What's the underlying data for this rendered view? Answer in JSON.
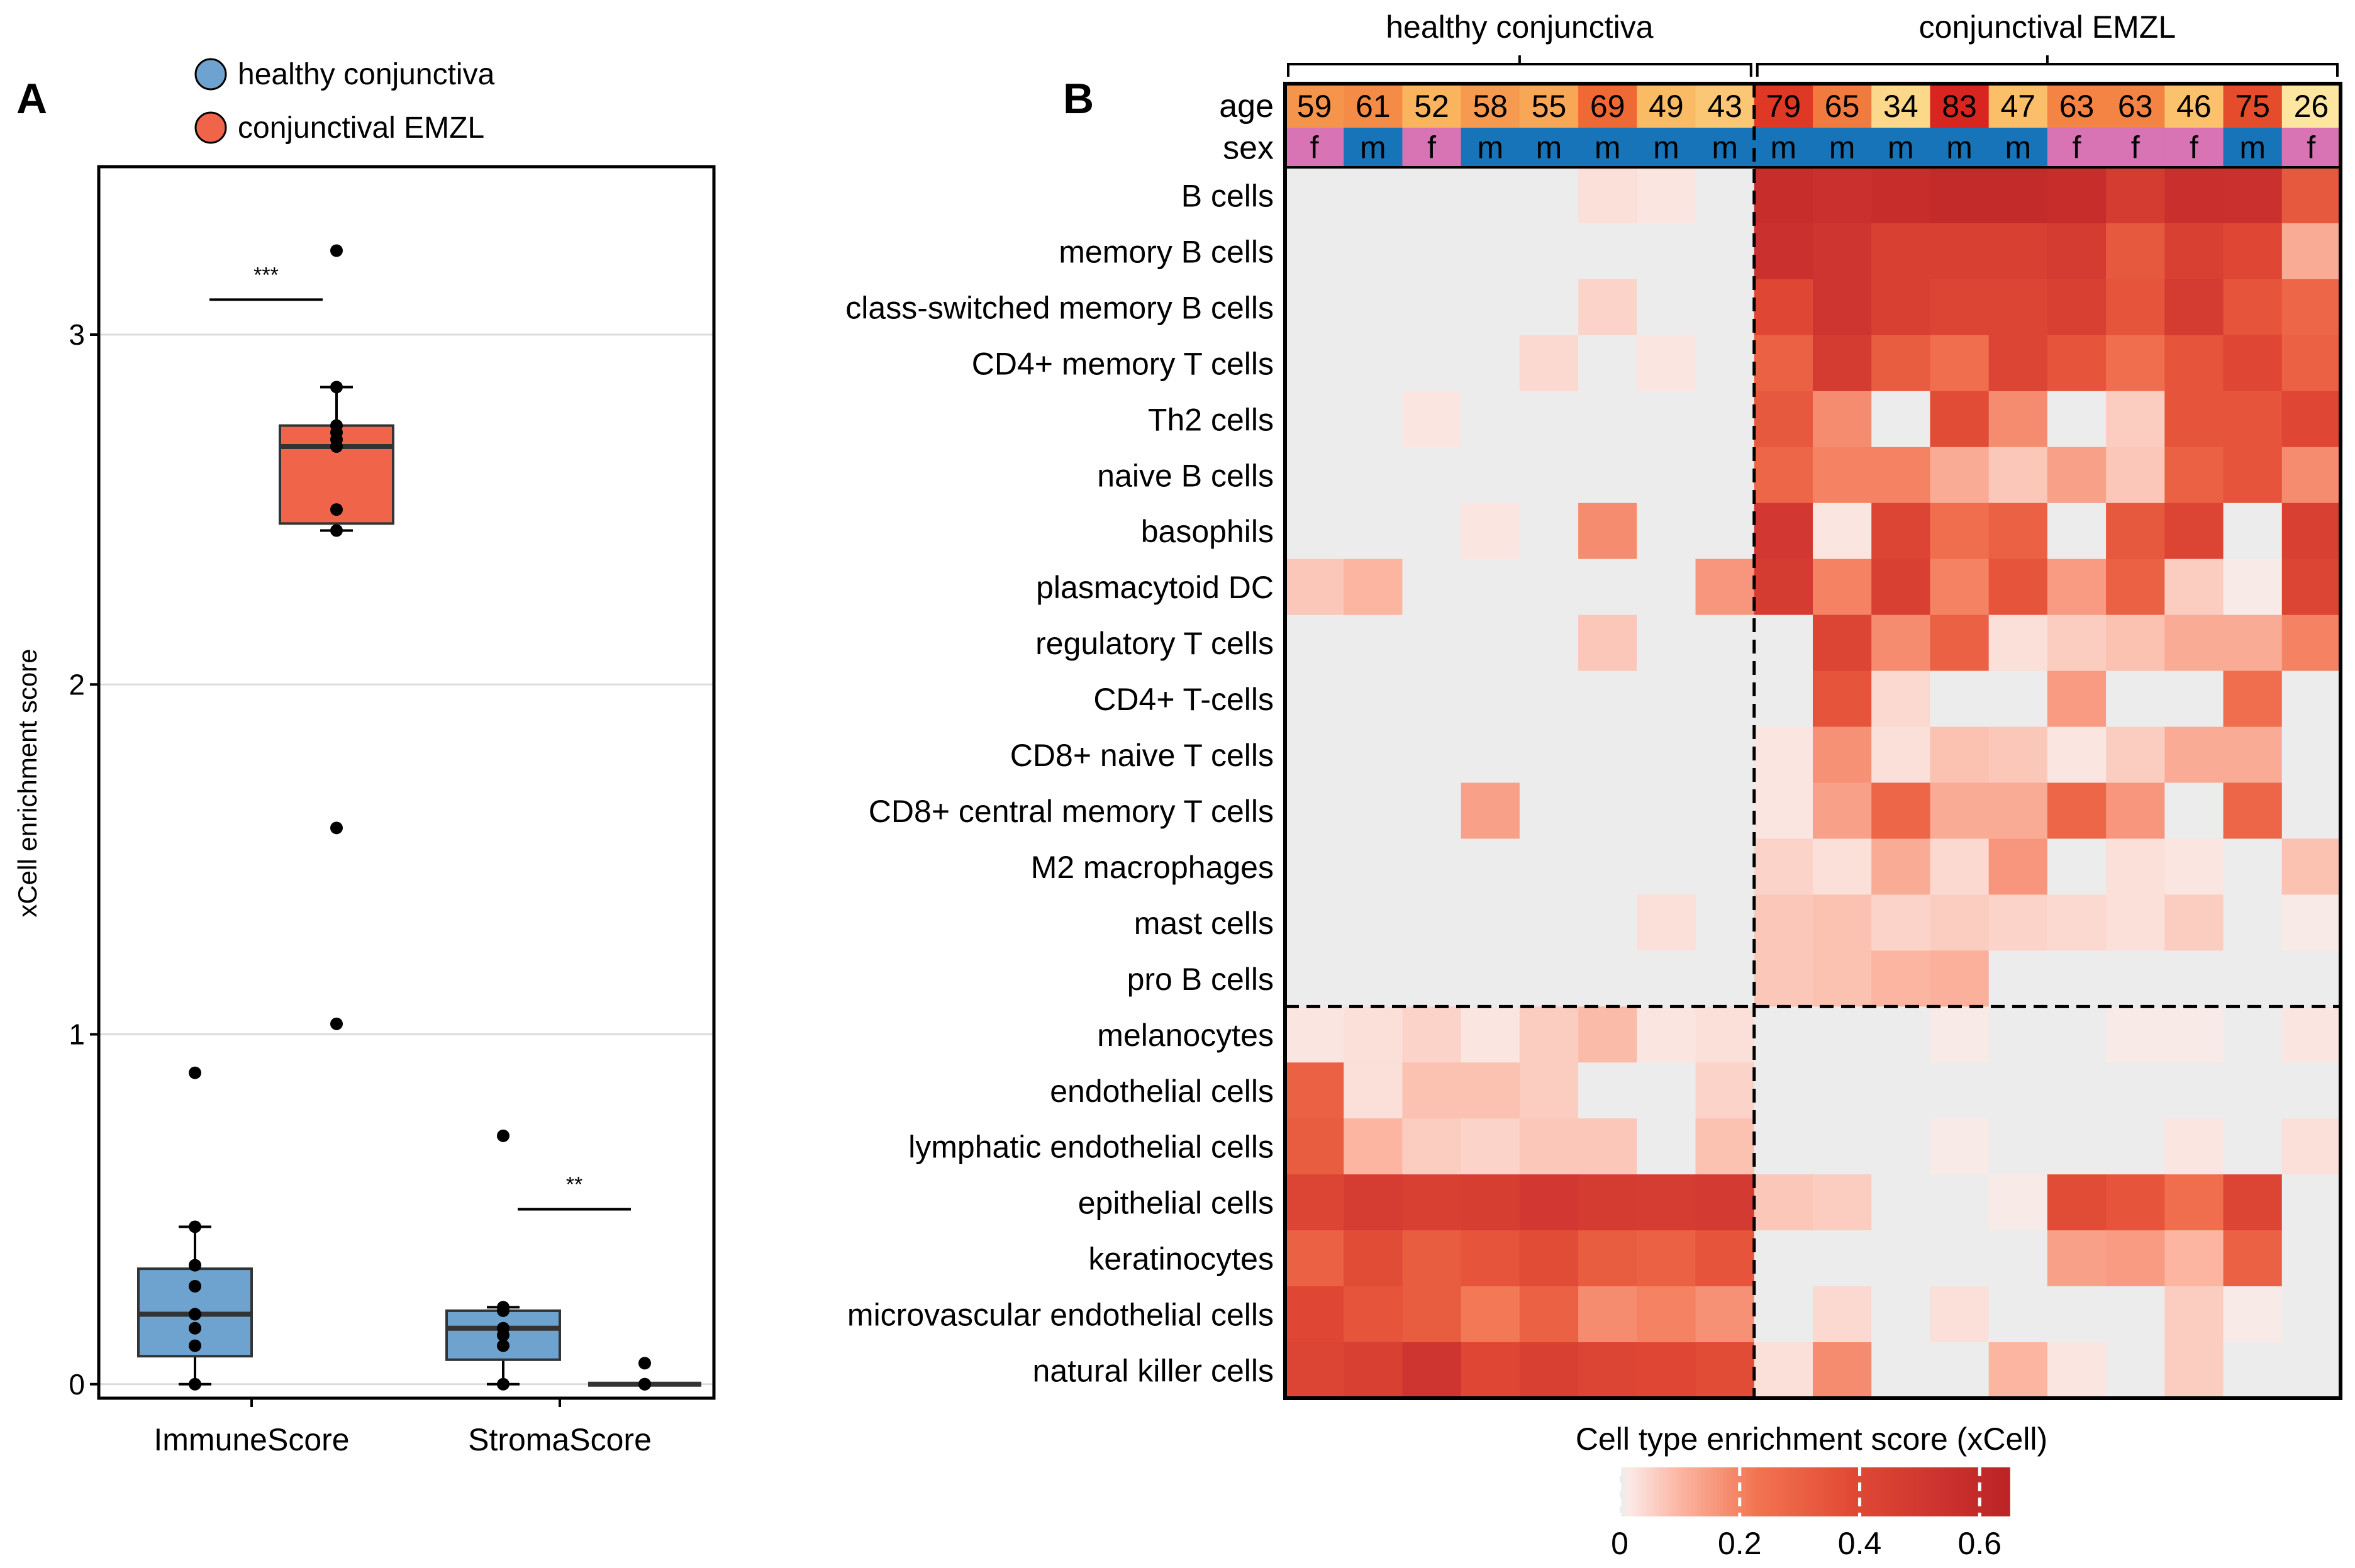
{
  "panel_a": {
    "label": "A",
    "legend": [
      {
        "name": "healthy conjunctiva",
        "color": "#6fa3cf"
      },
      {
        "name": "conjunctival EMZL",
        "color": "#f0654a"
      }
    ]
  },
  "panel_b": {
    "label": "B",
    "colorbar_title": "Cell type enrichment score (xCell)"
  },
  "chart_data": [
    {
      "type": "box",
      "title": "",
      "ylabel": "xCell enrichment score",
      "xlabel": "",
      "ylim": [
        -0.04,
        3.48
      ],
      "yticks": [
        0,
        1,
        2,
        3
      ],
      "categories": [
        "ImmuneScore",
        "StromaScore"
      ],
      "series": [
        {
          "name": "healthy conjunctiva",
          "color": "#6fa3cf",
          "boxes": [
            {
              "category": "ImmuneScore",
              "whisker_low": 0.0,
              "q1": 0.08,
              "median": 0.2,
              "q3": 0.33,
              "whisker_high": 0.45,
              "outliers": [
                0.89
              ],
              "points": [
                0.0,
                0.11,
                0.16,
                0.2,
                0.28,
                0.34,
                0.45,
                0.89
              ]
            },
            {
              "category": "StromaScore",
              "whisker_low": 0.0,
              "q1": 0.07,
              "median": 0.16,
              "q3": 0.21,
              "whisker_high": 0.22,
              "outliers": [
                0.71
              ],
              "points": [
                0.0,
                0.11,
                0.14,
                0.16,
                0.21,
                0.22,
                0.71
              ]
            }
          ]
        },
        {
          "name": "conjunctival EMZL",
          "color": "#f0654a",
          "boxes": [
            {
              "category": "ImmuneScore",
              "whisker_low": 2.44,
              "q1": 2.46,
              "median": 2.68,
              "q3": 2.74,
              "whisker_high": 2.85,
              "outliers": [
                3.24,
                1.59,
                1.03
              ],
              "points": [
                2.44,
                2.5,
                2.68,
                2.7,
                2.72,
                2.74,
                2.85,
                3.24,
                1.59,
                1.03
              ]
            },
            {
              "category": "StromaScore",
              "whisker_low": 0.0,
              "q1": 0.0,
              "median": 0.0,
              "q3": 0.0,
              "whisker_high": 0.0,
              "outliers": [
                0.06
              ],
              "points": [
                0.0,
                0.0,
                0.06
              ]
            }
          ]
        }
      ],
      "significance": [
        {
          "category": "ImmuneScore",
          "label": "***"
        },
        {
          "category": "StromaScore",
          "label": "**"
        }
      ]
    },
    {
      "type": "heatmap",
      "title": "",
      "groups": [
        {
          "name": "healthy conjunctiva",
          "n": 8
        },
        {
          "name": "conjunctival EMZL",
          "n": 10
        }
      ],
      "row_annotation_labels": [
        "age",
        "sex"
      ],
      "ages": [
        59,
        61,
        52,
        58,
        55,
        69,
        49,
        43,
        79,
        65,
        34,
        83,
        47,
        63,
        63,
        46,
        75,
        26
      ],
      "sexes": [
        "f",
        "m",
        "f",
        "m",
        "m",
        "m",
        "m",
        "m",
        "m",
        "m",
        "m",
        "m",
        "m",
        "f",
        "f",
        "f",
        "m",
        "f"
      ],
      "sex_colors": {
        "f": "#d873b4",
        "m": "#1874b8"
      },
      "age_range": [
        26,
        83
      ],
      "rows": [
        "B cells",
        "memory B cells",
        "class-switched memory B cells",
        "CD4+ memory T cells",
        "Th2 cells",
        "naive B cells",
        "basophils",
        "plasmacytoid DC",
        "regulatory T cells",
        "CD4+ T-cells",
        "CD8+ naive T cells",
        "CD8+ central memory T cells",
        "M2 macrophages",
        "mast cells",
        "pro B cells",
        "melanocytes",
        "endothelial cells",
        "lymphatic endothelial cells",
        "epithelial cells",
        "keratinocytes",
        "microvascular endothelial cells",
        "natural killer cells"
      ],
      "row_split_after": 15,
      "values": [
        [
          0,
          0,
          0,
          0,
          0,
          0.03,
          0.02,
          0,
          0.58,
          0.55,
          0.58,
          0.6,
          0.6,
          0.58,
          0.48,
          0.56,
          0.55,
          0.33
        ],
        [
          0,
          0,
          0,
          0,
          0,
          0,
          0,
          0,
          0.55,
          0.52,
          0.45,
          0.45,
          0.45,
          0.48,
          0.33,
          0.45,
          0.4,
          0.12
        ],
        [
          0,
          0,
          0,
          0,
          0,
          0.05,
          0,
          0,
          0.4,
          0.52,
          0.45,
          0.42,
          0.42,
          0.45,
          0.35,
          0.48,
          0.35,
          0.28
        ],
        [
          0,
          0,
          0,
          0,
          0.04,
          0,
          0.02,
          0,
          0.3,
          0.48,
          0.32,
          0.25,
          0.42,
          0.35,
          0.25,
          0.35,
          0.4,
          0.3
        ],
        [
          0,
          0,
          0.02,
          0,
          0,
          0,
          0,
          0,
          0.33,
          0.18,
          0,
          0.38,
          0.18,
          0,
          0.06,
          0.35,
          0.35,
          0.4
        ],
        [
          0,
          0,
          0,
          0,
          0,
          0,
          0,
          0,
          0.28,
          0.2,
          0.2,
          0.12,
          0.07,
          0.14,
          0.07,
          0.3,
          0.35,
          0.18
        ],
        [
          0,
          0,
          0,
          0.02,
          0,
          0.18,
          0,
          0,
          0.5,
          0.02,
          0.42,
          0.25,
          0.3,
          0,
          0.33,
          0.42,
          0,
          0.45
        ],
        [
          0.07,
          0.1,
          0,
          0,
          0,
          0,
          0,
          0.16,
          0.48,
          0.2,
          0.45,
          0.2,
          0.35,
          0.15,
          0.3,
          0.06,
          0.01,
          0.42
        ],
        [
          0,
          0,
          0,
          0,
          0,
          0.07,
          0,
          0,
          0,
          0.42,
          0.18,
          0.3,
          0.03,
          0.06,
          0.08,
          0.12,
          0.12,
          0.2
        ],
        [
          0,
          0,
          0,
          0,
          0,
          0,
          0,
          0,
          0,
          0.35,
          0.04,
          0,
          0,
          0.15,
          0,
          0,
          0.25,
          0
        ],
        [
          0,
          0,
          0,
          0,
          0,
          0,
          0,
          0,
          0.02,
          0.17,
          0.03,
          0.08,
          0.07,
          0.02,
          0.06,
          0.12,
          0.12,
          0
        ],
        [
          0,
          0,
          0,
          0.14,
          0,
          0,
          0,
          0,
          0.02,
          0.14,
          0.28,
          0.12,
          0.12,
          0.28,
          0.16,
          0,
          0.28,
          0
        ],
        [
          0,
          0,
          0,
          0,
          0,
          0,
          0,
          0,
          0.05,
          0.03,
          0.12,
          0.04,
          0.16,
          0,
          0.03,
          0.02,
          0,
          0.08
        ],
        [
          0,
          0,
          0,
          0,
          0,
          0,
          0.03,
          0,
          0.07,
          0.08,
          0.05,
          0.06,
          0.05,
          0.04,
          0.03,
          0.06,
          0,
          0.01
        ],
        [
          0,
          0,
          0,
          0,
          0,
          0,
          0,
          0,
          0.07,
          0.08,
          0.1,
          0.11,
          0,
          0,
          0,
          0,
          0,
          0
        ],
        [
          0.02,
          0.03,
          0.05,
          0.02,
          0.06,
          0.09,
          0.02,
          0.03,
          0,
          0,
          0,
          0.01,
          0,
          0,
          0.01,
          0.01,
          0,
          0.02
        ],
        [
          0.3,
          0.03,
          0.08,
          0.08,
          0.06,
          0,
          0,
          0.05,
          0,
          0,
          0,
          0,
          0,
          0,
          0,
          0,
          0,
          0
        ],
        [
          0.32,
          0.1,
          0.06,
          0.05,
          0.07,
          0.07,
          0,
          0.08,
          0,
          0,
          0,
          0.01,
          0,
          0,
          0,
          0.02,
          0,
          0.03
        ],
        [
          0.42,
          0.47,
          0.45,
          0.46,
          0.5,
          0.48,
          0.47,
          0.49,
          0.07,
          0.06,
          0,
          0,
          0.01,
          0.38,
          0.35,
          0.25,
          0.42,
          0
        ],
        [
          0.3,
          0.38,
          0.32,
          0.35,
          0.38,
          0.32,
          0.3,
          0.35,
          0,
          0,
          0,
          0,
          0,
          0.14,
          0.15,
          0.1,
          0.3,
          0
        ],
        [
          0.4,
          0.35,
          0.32,
          0.22,
          0.3,
          0.18,
          0.2,
          0.17,
          0,
          0.04,
          0,
          0.03,
          0,
          0,
          0,
          0.06,
          0.01,
          0
        ],
        [
          0.42,
          0.45,
          0.52,
          0.4,
          0.45,
          0.42,
          0.4,
          0.38,
          0.03,
          0.18,
          0,
          0,
          0.1,
          0.02,
          0,
          0.06,
          0,
          0
        ]
      ],
      "colorbar": {
        "min": 0,
        "max": 0.65,
        "ticks": [
          0,
          0.2,
          0.4,
          0.6
        ],
        "tick_labels": [
          "0",
          "0.2",
          "0.4",
          "0.6"
        ]
      }
    }
  ]
}
